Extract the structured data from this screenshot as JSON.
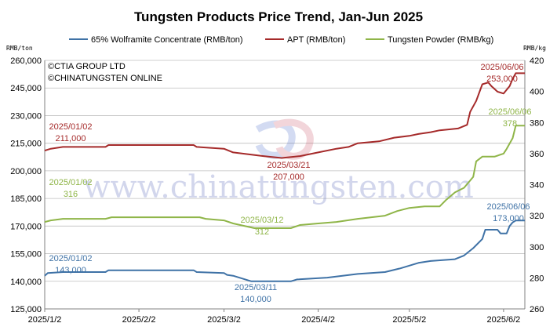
{
  "chart_data": {
    "type": "line",
    "title": "Tungsten Products Price Trend, Jan-Jun 2025",
    "y_left_unit": "RMB/ton",
    "y_right_unit": "RMB/kg",
    "y_left_ticks": [
      "125,000",
      "140,000",
      "155,000",
      "170,000",
      "185,000",
      "200,000",
      "215,000",
      "230,000",
      "245,000",
      "260,000"
    ],
    "y_right_ticks": [
      "260",
      "280",
      "300",
      "320",
      "340",
      "360",
      "380",
      "400",
      "420"
    ],
    "ylim_left": [
      125000,
      260000
    ],
    "ylim_right": [
      260,
      420
    ],
    "x_ticks": [
      "2025/1/2",
      "2025/2/2",
      "2025/3/2",
      "2025/4/2",
      "2025/5/2",
      "2025/6/2"
    ],
    "x_tick_dates": [
      "2025-01-02",
      "2025-02-02",
      "2025-03-02",
      "2025-04-02",
      "2025-05-02",
      "2025-06-02"
    ],
    "x_range": [
      "2025-01-02",
      "2025-06-09"
    ],
    "grid": "horizontal",
    "legend_position": "top",
    "series": [
      {
        "name": "65% Wolframite Concentrate (RMB/ton)",
        "axis": "left",
        "color": "#3f72a6",
        "points": [
          [
            "2025-01-02",
            143000
          ],
          [
            "2025-01-03",
            144500
          ],
          [
            "2025-01-08",
            145000
          ],
          [
            "2025-01-22",
            145000
          ],
          [
            "2025-01-23",
            146000
          ],
          [
            "2025-02-20",
            146000
          ],
          [
            "2025-02-21",
            145000
          ],
          [
            "2025-03-02",
            144500
          ],
          [
            "2025-03-03",
            143500
          ],
          [
            "2025-03-05",
            143000
          ],
          [
            "2025-03-11",
            140000
          ],
          [
            "2025-03-24",
            140000
          ],
          [
            "2025-03-26",
            141000
          ],
          [
            "2025-04-05",
            142000
          ],
          [
            "2025-04-10",
            143000
          ],
          [
            "2025-04-15",
            144000
          ],
          [
            "2025-04-24",
            145000
          ],
          [
            "2025-04-29",
            147000
          ],
          [
            "2025-05-05",
            150000
          ],
          [
            "2025-05-09",
            151000
          ],
          [
            "2025-05-17",
            152000
          ],
          [
            "2025-05-20",
            154000
          ],
          [
            "2025-05-23",
            158000
          ],
          [
            "2025-05-26",
            163000
          ],
          [
            "2025-05-27",
            168000
          ],
          [
            "2025-05-31",
            168000
          ],
          [
            "2025-06-01",
            166000
          ],
          [
            "2025-06-03",
            166000
          ],
          [
            "2025-06-04",
            170000
          ],
          [
            "2025-06-05",
            172000
          ],
          [
            "2025-06-06",
            173000
          ],
          [
            "2025-06-09",
            173000
          ]
        ]
      },
      {
        "name": "APT (RMB/ton)",
        "axis": "left",
        "color": "#a52a2a",
        "points": [
          [
            "2025-01-02",
            211000
          ],
          [
            "2025-01-04",
            212000
          ],
          [
            "2025-01-08",
            213000
          ],
          [
            "2025-01-22",
            213000
          ],
          [
            "2025-01-23",
            214000
          ],
          [
            "2025-02-20",
            214000
          ],
          [
            "2025-02-21",
            213000
          ],
          [
            "2025-03-02",
            212000
          ],
          [
            "2025-03-05",
            210000
          ],
          [
            "2025-03-10",
            209000
          ],
          [
            "2025-03-15",
            208000
          ],
          [
            "2025-03-21",
            207000
          ],
          [
            "2025-03-27",
            208000
          ],
          [
            "2025-04-02",
            210000
          ],
          [
            "2025-04-08",
            212000
          ],
          [
            "2025-04-12",
            213000
          ],
          [
            "2025-04-15",
            215000
          ],
          [
            "2025-04-22",
            216000
          ],
          [
            "2025-04-27",
            218000
          ],
          [
            "2025-05-02",
            219000
          ],
          [
            "2025-05-05",
            220000
          ],
          [
            "2025-05-09",
            221000
          ],
          [
            "2025-05-12",
            222000
          ],
          [
            "2025-05-18",
            223000
          ],
          [
            "2025-05-21",
            225000
          ],
          [
            "2025-05-22",
            232000
          ],
          [
            "2025-05-24",
            238000
          ],
          [
            "2025-05-26",
            247000
          ],
          [
            "2025-05-28",
            248000
          ],
          [
            "2025-05-29",
            246000
          ],
          [
            "2025-05-31",
            243000
          ],
          [
            "2025-06-02",
            242000
          ],
          [
            "2025-06-04",
            246000
          ],
          [
            "2025-06-05",
            250000
          ],
          [
            "2025-06-06",
            253000
          ],
          [
            "2025-06-09",
            253000
          ]
        ]
      },
      {
        "name": "Tungsten Powder (RMB/kg)",
        "axis": "right",
        "color": "#8fb548",
        "points": [
          [
            "2025-01-02",
            316
          ],
          [
            "2025-01-04",
            317
          ],
          [
            "2025-01-08",
            318
          ],
          [
            "2025-01-22",
            318
          ],
          [
            "2025-01-24",
            319
          ],
          [
            "2025-02-22",
            319
          ],
          [
            "2025-02-24",
            318
          ],
          [
            "2025-03-02",
            317
          ],
          [
            "2025-03-05",
            315
          ],
          [
            "2025-03-12",
            312
          ],
          [
            "2025-03-24",
            312
          ],
          [
            "2025-03-27",
            314
          ],
          [
            "2025-04-02",
            315
          ],
          [
            "2025-04-08",
            316
          ],
          [
            "2025-04-15",
            318
          ],
          [
            "2025-04-24",
            320
          ],
          [
            "2025-04-28",
            323
          ],
          [
            "2025-05-02",
            325
          ],
          [
            "2025-05-07",
            326
          ],
          [
            "2025-05-12",
            326
          ],
          [
            "2025-05-14",
            330
          ],
          [
            "2025-05-17",
            335
          ],
          [
            "2025-05-20",
            338
          ],
          [
            "2025-05-23",
            345
          ],
          [
            "2025-05-24",
            355
          ],
          [
            "2025-05-26",
            358
          ],
          [
            "2025-05-30",
            358
          ],
          [
            "2025-06-02",
            360
          ],
          [
            "2025-06-03",
            363
          ],
          [
            "2025-06-05",
            370
          ],
          [
            "2025-06-06",
            378
          ],
          [
            "2025-06-09",
            378
          ]
        ]
      }
    ],
    "annotations": [
      {
        "date_label": "2025/01/02",
        "value_label": "211,000",
        "series": 0
      },
      {
        "date_label": "2025/03/21",
        "value_label": "207,000",
        "series": 0
      },
      {
        "date_label": "2025/06/06",
        "value_label": "253,000",
        "series": 0
      },
      {
        "date_label": "2025/01/02",
        "value_label": "316",
        "series": 1
      },
      {
        "date_label": "2025/03/12",
        "value_label": "312",
        "series": 1
      },
      {
        "date_label": "2025/06/06",
        "value_label": "378",
        "series": 1
      },
      {
        "date_label": "2025/01/02",
        "value_label": "143,000",
        "series": 2
      },
      {
        "date_label": "2025/03/11",
        "value_label": "140,000",
        "series": 2
      },
      {
        "date_label": "2025/06/06",
        "value_label": "173,000",
        "series": 2
      }
    ]
  },
  "copyright_lines": [
    "©CTIA GROUP LTD",
    "©CHINATUNGSTEN ONLINE"
  ],
  "watermark_text": "www.chinatungsten.com"
}
